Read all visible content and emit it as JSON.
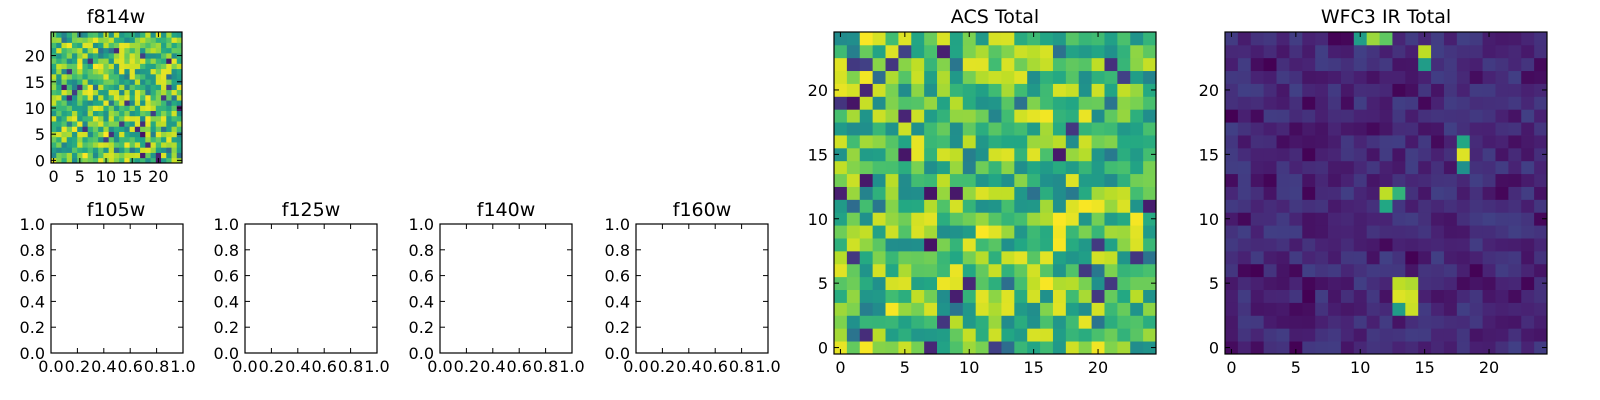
{
  "chart_data": [
    {
      "type": "heatmap",
      "title": "f814w",
      "grid_size": 25,
      "xlim": [
        -0.5,
        24.5
      ],
      "ylim": [
        -0.5,
        24.5
      ],
      "xticks": [
        0,
        5,
        10,
        15,
        20
      ],
      "yticks": [
        0,
        5,
        10,
        15,
        20
      ],
      "colormap": "viridis",
      "pattern": "noise",
      "value_range": [
        0.0,
        1.0
      ],
      "typical_level": 0.72,
      "spread": 0.25
    },
    {
      "type": "scatter",
      "title": "f105w",
      "xlim": [
        0,
        1
      ],
      "ylim": [
        0,
        1
      ],
      "xticks": [
        "0.0",
        "0.2",
        "0.4",
        "0.6",
        "0.8",
        "1.0"
      ],
      "yticks": [
        "0.0",
        "0.2",
        "0.4",
        "0.6",
        "0.8",
        "1.0"
      ],
      "points": []
    },
    {
      "type": "scatter",
      "title": "f125w",
      "xlim": [
        0,
        1
      ],
      "ylim": [
        0,
        1
      ],
      "xticks": [
        "0.0",
        "0.2",
        "0.4",
        "0.6",
        "0.8",
        "1.0"
      ],
      "yticks": [
        "0.0",
        "0.2",
        "0.4",
        "0.6",
        "0.8",
        "1.0"
      ],
      "points": []
    },
    {
      "type": "scatter",
      "title": "f140w",
      "xlim": [
        0,
        1
      ],
      "ylim": [
        0,
        1
      ],
      "xticks": [
        "0.0",
        "0.2",
        "0.4",
        "0.6",
        "0.8",
        "1.0"
      ],
      "yticks": [
        "0.0",
        "0.2",
        "0.4",
        "0.6",
        "0.8",
        "1.0"
      ],
      "points": []
    },
    {
      "type": "scatter",
      "title": "f160w",
      "xlim": [
        0,
        1
      ],
      "ylim": [
        0,
        1
      ],
      "xticks": [
        "0.0",
        "0.2",
        "0.4",
        "0.6",
        "0.8",
        "1.0"
      ],
      "yticks": [
        "0.0",
        "0.2",
        "0.4",
        "0.6",
        "0.8",
        "1.0"
      ],
      "points": []
    },
    {
      "type": "heatmap",
      "title": "ACS Total",
      "grid_size": 25,
      "xlim": [
        -0.5,
        24.5
      ],
      "ylim": [
        -0.5,
        24.5
      ],
      "xticks": [
        0,
        5,
        10,
        15,
        20
      ],
      "yticks": [
        0,
        5,
        10,
        15,
        20
      ],
      "colormap": "viridis",
      "pattern": "noise",
      "value_range": [
        0.0,
        1.0
      ],
      "typical_level": 0.72,
      "spread": 0.24
    },
    {
      "type": "heatmap",
      "title": "WFC3 IR Total",
      "grid_size": 25,
      "xlim": [
        -0.5,
        24.5
      ],
      "ylim": [
        -0.5,
        24.5
      ],
      "xticks": [
        0,
        5,
        10,
        15,
        20
      ],
      "yticks": [
        0,
        5,
        10,
        15,
        20
      ],
      "colormap": "viridis",
      "pattern": "background_with_sources",
      "value_range": [
        0.0,
        1.0
      ],
      "typical_level": 0.12,
      "spread": 0.07,
      "sources": [
        {
          "x": 13,
          "y": 4,
          "value": 0.95
        },
        {
          "x": 14,
          "y": 4,
          "value": 0.93
        },
        {
          "x": 13,
          "y": 5,
          "value": 0.9
        },
        {
          "x": 14,
          "y": 5,
          "value": 0.88
        },
        {
          "x": 14,
          "y": 3,
          "value": 0.92
        },
        {
          "x": 13,
          "y": 3,
          "value": 0.55
        },
        {
          "x": 12,
          "y": 12,
          "value": 0.9
        },
        {
          "x": 13,
          "y": 12,
          "value": 0.65
        },
        {
          "x": 12,
          "y": 11,
          "value": 0.6
        },
        {
          "x": 18,
          "y": 15,
          "value": 0.95
        },
        {
          "x": 18,
          "y": 16,
          "value": 0.6
        },
        {
          "x": 18,
          "y": 14,
          "value": 0.5
        },
        {
          "x": 15,
          "y": 23,
          "value": 0.9
        },
        {
          "x": 15,
          "y": 22,
          "value": 0.55
        },
        {
          "x": 11,
          "y": 24,
          "value": 0.85
        },
        {
          "x": 12,
          "y": 24,
          "value": 0.75
        },
        {
          "x": 10,
          "y": 24,
          "value": 0.55
        }
      ]
    }
  ]
}
